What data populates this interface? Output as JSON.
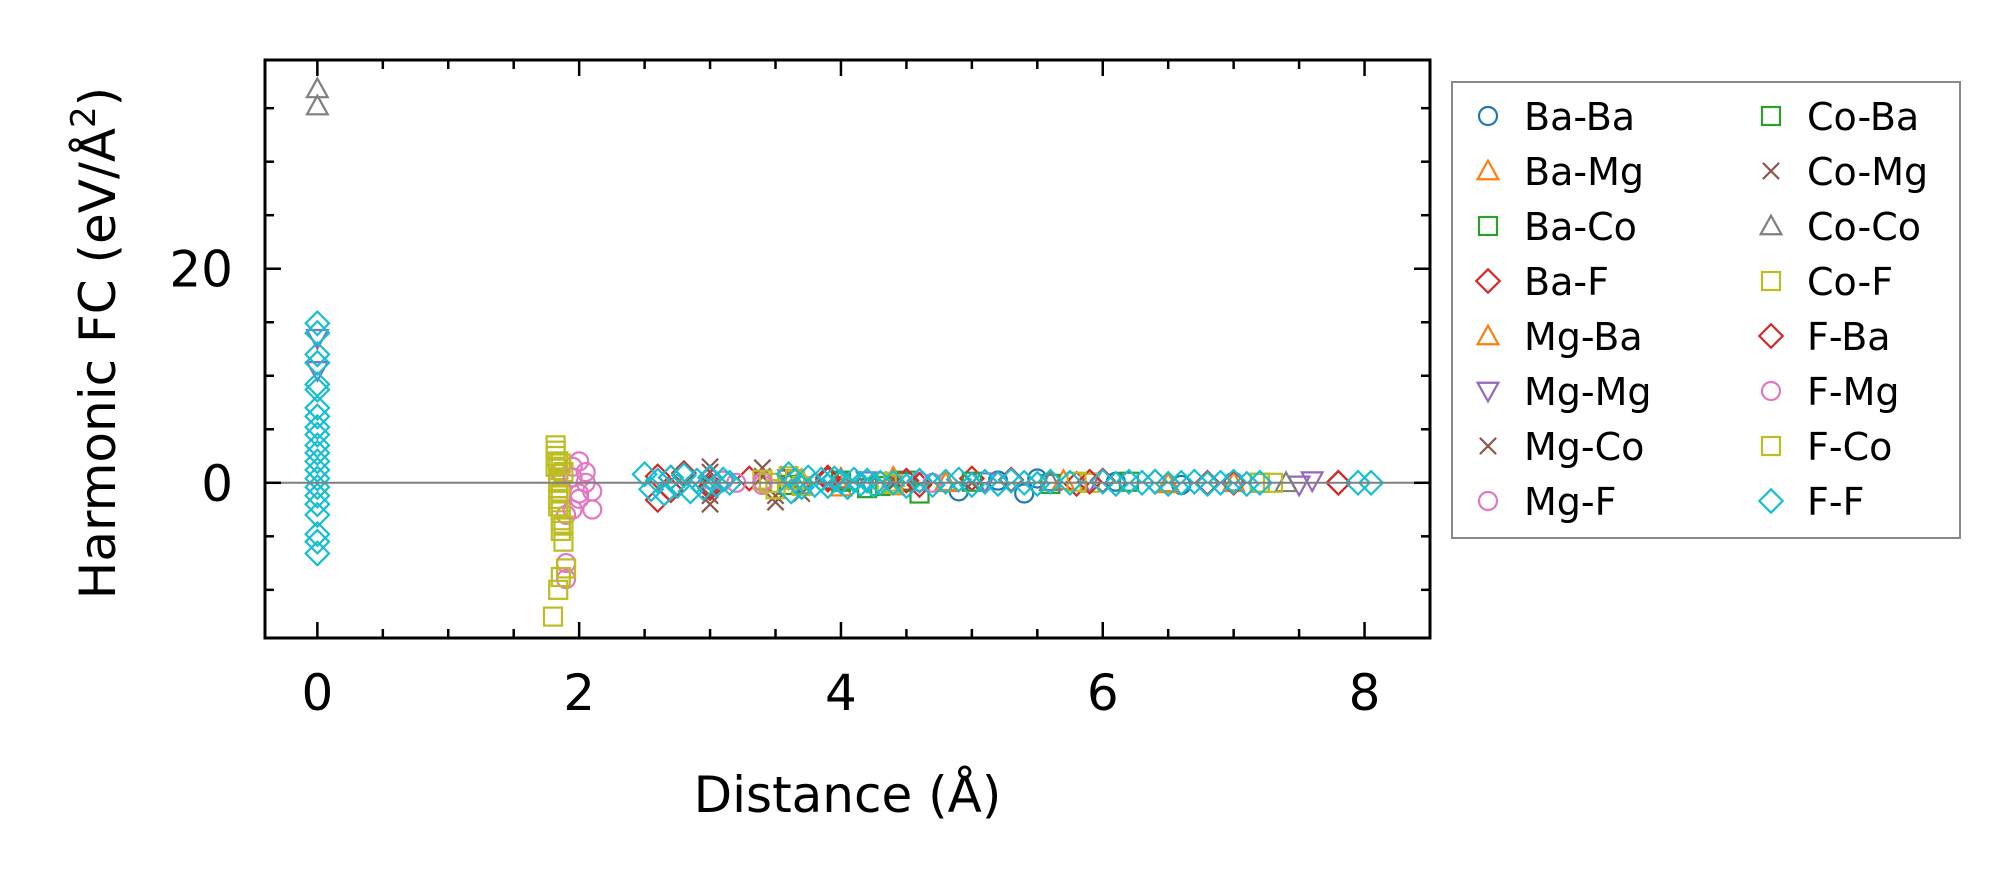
{
  "chart_data": {
    "type": "scatter",
    "title": "",
    "xlabel": "Distance (Å)",
    "ylabel": "Harmonic FC (eV/Å²)",
    "ylabel_parts": {
      "main": "Harmonic FC (eV/Å",
      "sup": "2",
      "close": ")"
    },
    "xlim": [
      -0.4,
      8.5
    ],
    "ylim": [
      -14.5,
      39.5
    ],
    "xticks": [
      0,
      2,
      4,
      6,
      8
    ],
    "xtick_labels": [
      "0",
      "2",
      "4",
      "6",
      "8"
    ],
    "yticks": [
      0,
      20
    ],
    "ytick_labels": [
      "0",
      "20"
    ],
    "zero_line": true,
    "legend_position": "outside-right",
    "series": [
      {
        "name": "Ba-Ba",
        "marker": "circle",
        "color": "#1f77b4",
        "points": [
          [
            4.5,
            0.1
          ],
          [
            4.9,
            -0.8
          ],
          [
            5.2,
            0.2
          ],
          [
            5.4,
            -1.0
          ],
          [
            5.5,
            0.4
          ],
          [
            6.1,
            0.1
          ],
          [
            6.6,
            -0.2
          ],
          [
            7.0,
            0.1
          ]
        ]
      },
      {
        "name": "Ba-Mg",
        "marker": "triangle-up",
        "color": "#ff7f0e",
        "points": [
          [
            3.7,
            0.3
          ],
          [
            4.0,
            -0.4
          ],
          [
            4.4,
            0.5
          ],
          [
            4.8,
            0.0
          ],
          [
            5.7,
            0.2
          ],
          [
            6.5,
            -0.1
          ],
          [
            7.0,
            0.0
          ]
        ]
      },
      {
        "name": "Ba-Co",
        "marker": "square",
        "color": "#2ca02c",
        "points": [
          [
            3.6,
            0.3
          ],
          [
            4.0,
            0.1
          ],
          [
            4.2,
            -0.5
          ],
          [
            4.5,
            0.2
          ],
          [
            5.6,
            -0.1
          ],
          [
            6.2,
            0.1
          ],
          [
            7.2,
            0.0
          ]
        ]
      },
      {
        "name": "Ba-F",
        "marker": "diamond",
        "color": "#d62728",
        "points": [
          [
            2.6,
            0.6
          ],
          [
            2.6,
            -1.6
          ],
          [
            2.7,
            -0.7
          ],
          [
            2.8,
            0.9
          ],
          [
            3.0,
            -0.4
          ],
          [
            3.3,
            0.4
          ],
          [
            3.9,
            0.5
          ],
          [
            4.5,
            0.2
          ],
          [
            5.0,
            0.4
          ],
          [
            5.3,
            0.3
          ],
          [
            5.8,
            -0.1
          ],
          [
            6.0,
            0.2
          ],
          [
            6.4,
            0.1
          ],
          [
            7.0,
            0.0
          ],
          [
            7.8,
            0.0
          ]
        ]
      },
      {
        "name": "Mg-Ba",
        "marker": "triangle-up",
        "color": "#ff7f0e",
        "points": [
          [
            3.7,
            -0.2
          ],
          [
            4.0,
            0.4
          ],
          [
            4.4,
            -0.3
          ],
          [
            4.8,
            0.1
          ],
          [
            6.5,
            0.0
          ]
        ]
      },
      {
        "name": "Mg-Mg",
        "marker": "triangle-down",
        "color": "#9467bd",
        "points": [
          [
            0.0,
            13.5
          ],
          [
            0.0,
            10.5
          ],
          [
            3.6,
            0.4
          ],
          [
            4.2,
            0.2
          ],
          [
            5.1,
            0.1
          ],
          [
            5.9,
            0.1
          ],
          [
            7.5,
            -0.2
          ],
          [
            7.6,
            0.2
          ]
        ]
      },
      {
        "name": "Mg-Co",
        "marker": "x",
        "color": "#8c564b",
        "points": [
          [
            3.0,
            1.5
          ],
          [
            3.0,
            -2.0
          ],
          [
            3.4,
            1.4
          ],
          [
            3.5,
            -1.8
          ],
          [
            3.6,
            0.8
          ],
          [
            3.7,
            -1.0
          ],
          [
            4.4,
            0.3
          ],
          [
            5.0,
            0.0
          ]
        ]
      },
      {
        "name": "Mg-F",
        "marker": "circle",
        "color": "#e377c2",
        "points": [
          [
            1.85,
            1.0
          ],
          [
            1.9,
            -3.0
          ],
          [
            1.95,
            1.5
          ],
          [
            2.0,
            -1.0
          ],
          [
            2.0,
            2.0
          ],
          [
            2.05,
            0.0
          ],
          [
            2.1,
            -2.5
          ],
          [
            1.9,
            -7.5
          ],
          [
            1.9,
            -9.0
          ],
          [
            3.0,
            0.3
          ],
          [
            3.2,
            0.0
          ],
          [
            3.4,
            -0.2
          ],
          [
            4.6,
            0.1
          ]
        ]
      },
      {
        "name": "Co-Ba",
        "marker": "square",
        "color": "#2ca02c",
        "points": [
          [
            3.6,
            -0.2
          ],
          [
            4.0,
            0.2
          ],
          [
            4.3,
            -0.3
          ],
          [
            4.6,
            -1.0
          ],
          [
            5.0,
            0.1
          ]
        ]
      },
      {
        "name": "Co-Mg",
        "marker": "x",
        "color": "#8c564b",
        "points": [
          [
            3.0,
            -1.2
          ],
          [
            3.0,
            1.0
          ],
          [
            3.4,
            0.6
          ],
          [
            3.5,
            -1.2
          ],
          [
            4.4,
            -0.2
          ]
        ]
      },
      {
        "name": "Co-Co",
        "marker": "triangle-up",
        "color": "#7f7f7f",
        "points": [
          [
            0.0,
            36.8
          ],
          [
            0.0,
            35.2
          ],
          [
            4.0,
            0.3
          ],
          [
            5.6,
            0.1
          ],
          [
            7.4,
            0.0
          ]
        ]
      },
      {
        "name": "Co-F",
        "marker": "square",
        "color": "#bcbd22",
        "points": [
          [
            1.82,
            3.5
          ],
          [
            1.82,
            2.5
          ],
          [
            1.82,
            1.5
          ],
          [
            1.84,
            0.5
          ],
          [
            1.84,
            -0.5
          ],
          [
            1.84,
            -1.5
          ],
          [
            1.86,
            -2.5
          ],
          [
            1.86,
            -3.5
          ],
          [
            1.86,
            -4.5
          ],
          [
            1.88,
            -5.5
          ],
          [
            1.84,
            2.0
          ],
          [
            1.86,
            -1.0
          ],
          [
            1.88,
            1.0
          ],
          [
            1.9,
            -8.0
          ],
          [
            1.86,
            -8.8
          ],
          [
            1.84,
            -10.0
          ],
          [
            1.8,
            -12.5
          ],
          [
            3.4,
            0.3
          ],
          [
            3.5,
            -0.6
          ],
          [
            3.6,
            0.6
          ],
          [
            3.7,
            -0.3
          ],
          [
            4.35,
            0.1
          ],
          [
            5.9,
            0.0
          ],
          [
            7.2,
            0.0
          ]
        ]
      },
      {
        "name": "F-Ba",
        "marker": "diamond",
        "color": "#d62728",
        "points": [
          [
            2.7,
            0.5
          ],
          [
            3.0,
            -0.5
          ],
          [
            3.9,
            0.3
          ],
          [
            4.6,
            -0.2
          ],
          [
            5.9,
            0.1
          ],
          [
            6.8,
            0.0
          ],
          [
            7.8,
            0.0
          ]
        ]
      },
      {
        "name": "F-Mg",
        "marker": "circle",
        "color": "#e377c2",
        "points": [
          [
            1.95,
            0.5
          ],
          [
            2.0,
            -1.5
          ],
          [
            2.05,
            1.0
          ],
          [
            2.1,
            -0.8
          ],
          [
            1.95,
            -2.5
          ],
          [
            3.1,
            0.2
          ],
          [
            3.4,
            0.1
          ],
          [
            4.7,
            0.0
          ]
        ]
      },
      {
        "name": "F-Co",
        "marker": "square",
        "color": "#bcbd22",
        "points": [
          [
            1.84,
            0.0
          ],
          [
            1.86,
            1.8
          ],
          [
            1.84,
            -2.2
          ],
          [
            1.88,
            -4.0
          ],
          [
            1.82,
            3.0
          ],
          [
            3.45,
            0.0
          ],
          [
            3.65,
            0.3
          ],
          [
            4.4,
            -0.1
          ],
          [
            5.8,
            0.1
          ],
          [
            7.3,
            0.0
          ]
        ]
      },
      {
        "name": "F-F",
        "marker": "diamond",
        "color": "#17becf",
        "points": [
          [
            0.0,
            14.9
          ],
          [
            0.0,
            14.0
          ],
          [
            0.0,
            12.0
          ],
          [
            0.0,
            11.2
          ],
          [
            0.0,
            9.2
          ],
          [
            0.0,
            8.7
          ],
          [
            0.0,
            7.0
          ],
          [
            0.0,
            6.2
          ],
          [
            0.0,
            5.2
          ],
          [
            0.0,
            4.5
          ],
          [
            0.0,
            3.5
          ],
          [
            0.0,
            2.8
          ],
          [
            0.0,
            2.0
          ],
          [
            0.0,
            1.2
          ],
          [
            0.0,
            0.4
          ],
          [
            0.0,
            -0.4
          ],
          [
            0.0,
            -1.2
          ],
          [
            0.0,
            -2.0
          ],
          [
            0.0,
            -3.0
          ],
          [
            0.0,
            -4.8
          ],
          [
            0.0,
            -5.5
          ],
          [
            0.0,
            -6.6
          ],
          [
            2.5,
            0.8
          ],
          [
            2.55,
            -0.6
          ],
          [
            2.6,
            0.2
          ],
          [
            2.65,
            -1.0
          ],
          [
            2.7,
            0.5
          ],
          [
            2.75,
            -0.3
          ],
          [
            2.8,
            0.7
          ],
          [
            2.85,
            -0.8
          ],
          [
            2.9,
            0.2
          ],
          [
            2.95,
            -0.5
          ],
          [
            3.0,
            0.5
          ],
          [
            3.05,
            -0.2
          ],
          [
            3.1,
            0.3
          ],
          [
            3.15,
            0.0
          ],
          [
            3.6,
            0.8
          ],
          [
            3.62,
            -0.8
          ],
          [
            3.65,
            0.2
          ],
          [
            3.7,
            -0.4
          ],
          [
            3.75,
            0.5
          ],
          [
            3.8,
            -0.2
          ],
          [
            3.85,
            0.3
          ],
          [
            3.9,
            -0.3
          ],
          [
            3.95,
            0.4
          ],
          [
            4.0,
            0.1
          ],
          [
            4.05,
            -0.4
          ],
          [
            4.1,
            0.3
          ],
          [
            4.15,
            -0.1
          ],
          [
            4.2,
            0.2
          ],
          [
            4.25,
            -0.2
          ],
          [
            4.3,
            0.0
          ],
          [
            4.4,
            0.0
          ],
          [
            4.5,
            -0.3
          ],
          [
            4.6,
            0.2
          ],
          [
            4.7,
            -0.2
          ],
          [
            4.8,
            0.1
          ],
          [
            4.9,
            0.3
          ],
          [
            5.0,
            -0.2
          ],
          [
            5.1,
            0.1
          ],
          [
            5.2,
            -0.1
          ],
          [
            5.3,
            0.2
          ],
          [
            5.4,
            0.0
          ],
          [
            5.5,
            -0.1
          ],
          [
            5.6,
            0.1
          ],
          [
            5.75,
            0.0
          ],
          [
            6.0,
            0.1
          ],
          [
            6.1,
            -0.1
          ],
          [
            6.2,
            0.1
          ],
          [
            6.3,
            0.0
          ],
          [
            6.4,
            0.1
          ],
          [
            6.5,
            -0.1
          ],
          [
            6.6,
            0.0
          ],
          [
            6.7,
            0.1
          ],
          [
            6.8,
            -0.1
          ],
          [
            6.9,
            0.0
          ],
          [
            7.0,
            0.1
          ],
          [
            7.1,
            -0.1
          ],
          [
            7.2,
            0.0
          ],
          [
            7.95,
            0.0
          ],
          [
            8.05,
            0.0
          ]
        ]
      }
    ]
  }
}
